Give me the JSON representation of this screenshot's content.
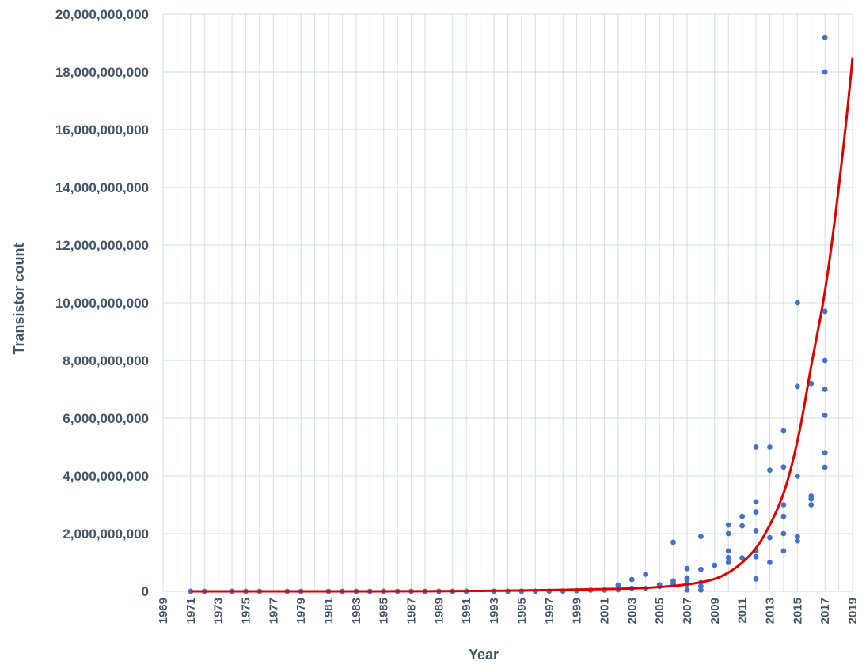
{
  "chart_data": {
    "type": "scatter",
    "title": "",
    "xlabel": "Year",
    "ylabel": "Transistor count",
    "xlim": [
      1969,
      2019
    ],
    "ylim": [
      0,
      20000000000
    ],
    "grid": true,
    "legend": "none",
    "x_ticks": [
      "1969",
      "1971",
      "1973",
      "1975",
      "1977",
      "1979",
      "1981",
      "1983",
      "1985",
      "1987",
      "1989",
      "1991",
      "1993",
      "1995",
      "1997",
      "1999",
      "2001",
      "2003",
      "2005",
      "2007",
      "2009",
      "2011",
      "2013",
      "2015",
      "2017",
      "2019"
    ],
    "y_ticks": [
      "0",
      "2,000,000,000",
      "4,000,000,000",
      "6,000,000,000",
      "8,000,000,000",
      "10,000,000,000",
      "12,000,000,000",
      "14,000,000,000",
      "16,000,000,000",
      "18,000,000,000",
      "20,000,000,000"
    ],
    "colors": {
      "points": "#4472c4",
      "trend": "#e00000",
      "grid": "#d6dce5",
      "text": "#44546a"
    },
    "series": [
      {
        "kind": "points",
        "points": [
          [
            1971,
            2300
          ],
          [
            1972,
            3500
          ],
          [
            1974,
            6000
          ],
          [
            1975,
            6000
          ],
          [
            1976,
            8500
          ],
          [
            1978,
            29000
          ],
          [
            1979,
            29000
          ],
          [
            1981,
            50000
          ],
          [
            1982,
            134000
          ],
          [
            1983,
            150000
          ],
          [
            1984,
            190000
          ],
          [
            1985,
            275000
          ],
          [
            1986,
            275000
          ],
          [
            1987,
            553000
          ],
          [
            1988,
            250000
          ],
          [
            1989,
            1180000
          ],
          [
            1990,
            1200000
          ],
          [
            1991,
            1350000
          ],
          [
            1993,
            3100000
          ],
          [
            1994,
            2500000
          ],
          [
            1995,
            5500000
          ],
          [
            1996,
            4300000
          ],
          [
            1997,
            7500000
          ],
          [
            1998,
            9500000
          ],
          [
            1999,
            21000000
          ],
          [
            2000,
            42000000
          ],
          [
            2001,
            45000000
          ],
          [
            2002,
            220000000
          ],
          [
            2002,
            55000000
          ],
          [
            2003,
            410000000
          ],
          [
            2003,
            106000000
          ],
          [
            2004,
            592000000
          ],
          [
            2004,
            100000000
          ],
          [
            2005,
            230000000
          ],
          [
            2005,
            169000000
          ],
          [
            2006,
            1700000000
          ],
          [
            2006,
            362000000
          ],
          [
            2006,
            291000000
          ],
          [
            2006,
            241000000
          ],
          [
            2007,
            789000000
          ],
          [
            2007,
            463000000
          ],
          [
            2007,
            411000000
          ],
          [
            2007,
            254000000
          ],
          [
            2007,
            47000000
          ],
          [
            2008,
            1900000000
          ],
          [
            2008,
            758000000
          ],
          [
            2008,
            300000000
          ],
          [
            2008,
            176000000
          ],
          [
            2008,
            47000000
          ],
          [
            2009,
            904000000
          ],
          [
            2010,
            2300000000
          ],
          [
            2010,
            2000000000
          ],
          [
            2010,
            1400000000
          ],
          [
            2010,
            1170000000
          ],
          [
            2010,
            1000000000
          ],
          [
            2011,
            2600000000
          ],
          [
            2011,
            2270000000
          ],
          [
            2011,
            1160000000
          ],
          [
            2012,
            5000000000
          ],
          [
            2012,
            3100000000
          ],
          [
            2012,
            2750000000
          ],
          [
            2012,
            2100000000
          ],
          [
            2012,
            1400000000
          ],
          [
            2012,
            1200000000
          ],
          [
            2012,
            430000000
          ],
          [
            2013,
            5000000000
          ],
          [
            2013,
            4200000000
          ],
          [
            2013,
            1860000000
          ],
          [
            2013,
            1000000000
          ],
          [
            2014,
            5560000000
          ],
          [
            2014,
            4310000000
          ],
          [
            2014,
            3000000000
          ],
          [
            2014,
            2600000000
          ],
          [
            2014,
            2000000000
          ],
          [
            2014,
            1400000000
          ],
          [
            2015,
            10000000000
          ],
          [
            2015,
            7100000000
          ],
          [
            2015,
            3990000000
          ],
          [
            2015,
            1900000000
          ],
          [
            2015,
            1750000000
          ],
          [
            2016,
            7200000000
          ],
          [
            2016,
            3300000000
          ],
          [
            2016,
            3200000000
          ],
          [
            2016,
            3000000000
          ],
          [
            2017,
            19200000000
          ],
          [
            2017,
            18000000000
          ],
          [
            2017,
            9700000000
          ],
          [
            2017,
            8000000000
          ],
          [
            2017,
            7000000000
          ],
          [
            2017,
            6100000000
          ],
          [
            2017,
            4800000000
          ],
          [
            2017,
            4300000000
          ]
        ]
      },
      {
        "kind": "trendline",
        "x": [
          1971,
          1975,
          1980,
          1985,
          1990,
          1995,
          2000,
          2003,
          2005,
          2007,
          2009,
          2010,
          2011,
          2012,
          2013,
          2014,
          2015,
          2016,
          2017,
          2018,
          2019
        ],
        "values": [
          2000,
          30000,
          200000,
          1500000,
          8000000,
          30000000,
          70000000,
          100000000,
          150000000,
          240000000,
          430000000,
          650000000,
          1000000000,
          1500000000,
          2300000000,
          3400000000,
          5200000000,
          7800000000,
          10400000000,
          14000000000,
          18500000000
        ]
      }
    ]
  }
}
